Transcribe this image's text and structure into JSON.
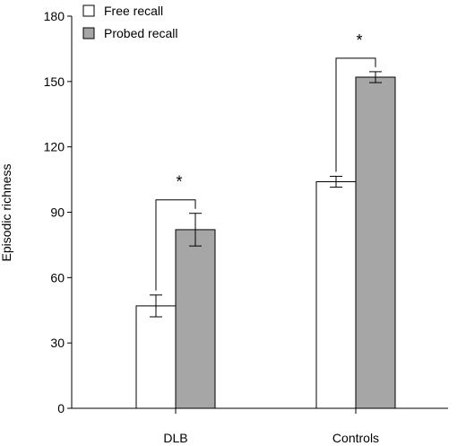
{
  "chart_data": {
    "type": "bar",
    "categories": [
      "DLB",
      "Controls"
    ],
    "series": [
      {
        "name": "Free recall",
        "values": [
          47,
          104
        ],
        "errors": [
          5,
          2.5
        ],
        "color": "#ffffff"
      },
      {
        "name": "Probed recall",
        "values": [
          82,
          152
        ],
        "errors": [
          7.5,
          2.5
        ],
        "color": "#a6a6a6"
      }
    ],
    "ylabel": "Episodic richness",
    "ylim": [
      0,
      180
    ],
    "yticks": [
      "0",
      "30",
      "60",
      "90",
      "120",
      "150",
      "180"
    ],
    "legend_position": "top-left",
    "grid": false,
    "significance": [
      {
        "category": "DLB",
        "label": "*"
      },
      {
        "category": "Controls",
        "label": "*"
      }
    ]
  }
}
